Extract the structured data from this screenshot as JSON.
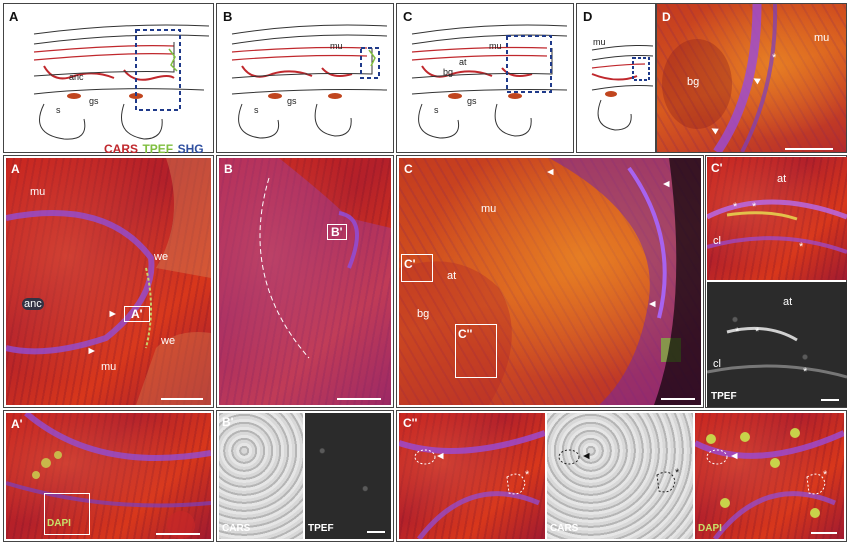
{
  "top_row": {
    "A": {
      "panel_label": "A",
      "labels": {
        "anc": "anc",
        "gs": "gs",
        "s": "s"
      }
    },
    "B": {
      "panel_label": "B",
      "labels": {
        "mu": "mu",
        "gs": "gs",
        "s": "s"
      }
    },
    "C": {
      "panel_label": "C",
      "labels": {
        "mu": "mu",
        "at": "at",
        "bg": "bg",
        "gs": "gs",
        "s": "s"
      }
    },
    "D": {
      "panel_label": "D",
      "labels": {
        "mu": "mu"
      }
    },
    "D_image": {
      "panel_label": "D",
      "labels": {
        "bg": "bg",
        "mu": "mu"
      }
    }
  },
  "legend": {
    "cars": "CARS",
    "tpef": "TPEF",
    "shg": "SHG",
    "colors": {
      "cars": "#c0282d",
      "tpef": "#7fbf3f",
      "shg": "#3050a0"
    }
  },
  "mid_row": {
    "A": {
      "panel_label": "A",
      "mu_top": "mu",
      "we_top": "we",
      "anc": "anc",
      "inset": "A'",
      "we_bottom": "we",
      "mu_bottom": "mu"
    },
    "B": {
      "panel_label": "B",
      "inset": "B'"
    },
    "C": {
      "panel_label": "C",
      "mu": "mu",
      "inset1": "C'",
      "at": "at",
      "bg": "bg",
      "inset2": "C''"
    },
    "C1": {
      "panel_label": "C'",
      "at": "at",
      "cl": "cl"
    },
    "C1_tpef": {
      "at": "at",
      "cl": "cl",
      "tpef": "TPEF"
    }
  },
  "bottom_row": {
    "A1": {
      "panel_label": "A'",
      "dapi": "DAPI"
    },
    "B1": {
      "panel_label": "B'",
      "cars": "CARS",
      "tpef": "TPEF"
    },
    "C2": {
      "panel_label": "C''",
      "cars": "CARS",
      "dapi": "DAPI"
    }
  },
  "symbols": {
    "star": "*",
    "arrow": "▲"
  }
}
